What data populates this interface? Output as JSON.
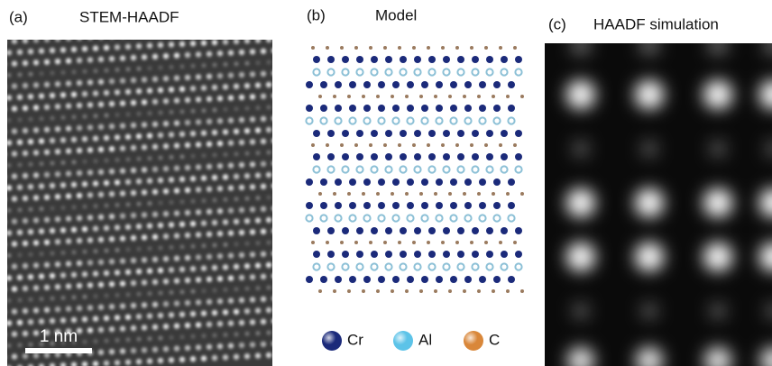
{
  "panels": [
    {
      "label": "(a)",
      "title": "STEM-HAADF"
    },
    {
      "label": "(b)",
      "title": "Model"
    },
    {
      "label": "(c)",
      "title": "HAADF simulation"
    }
  ],
  "scale_bar": "1 nm",
  "legend": [
    {
      "label": "Cr",
      "color": "#1b2a7a"
    },
    {
      "label": "Al",
      "color": "#5cc3e8"
    },
    {
      "label": "C",
      "color": "#d9873a"
    }
  ]
}
